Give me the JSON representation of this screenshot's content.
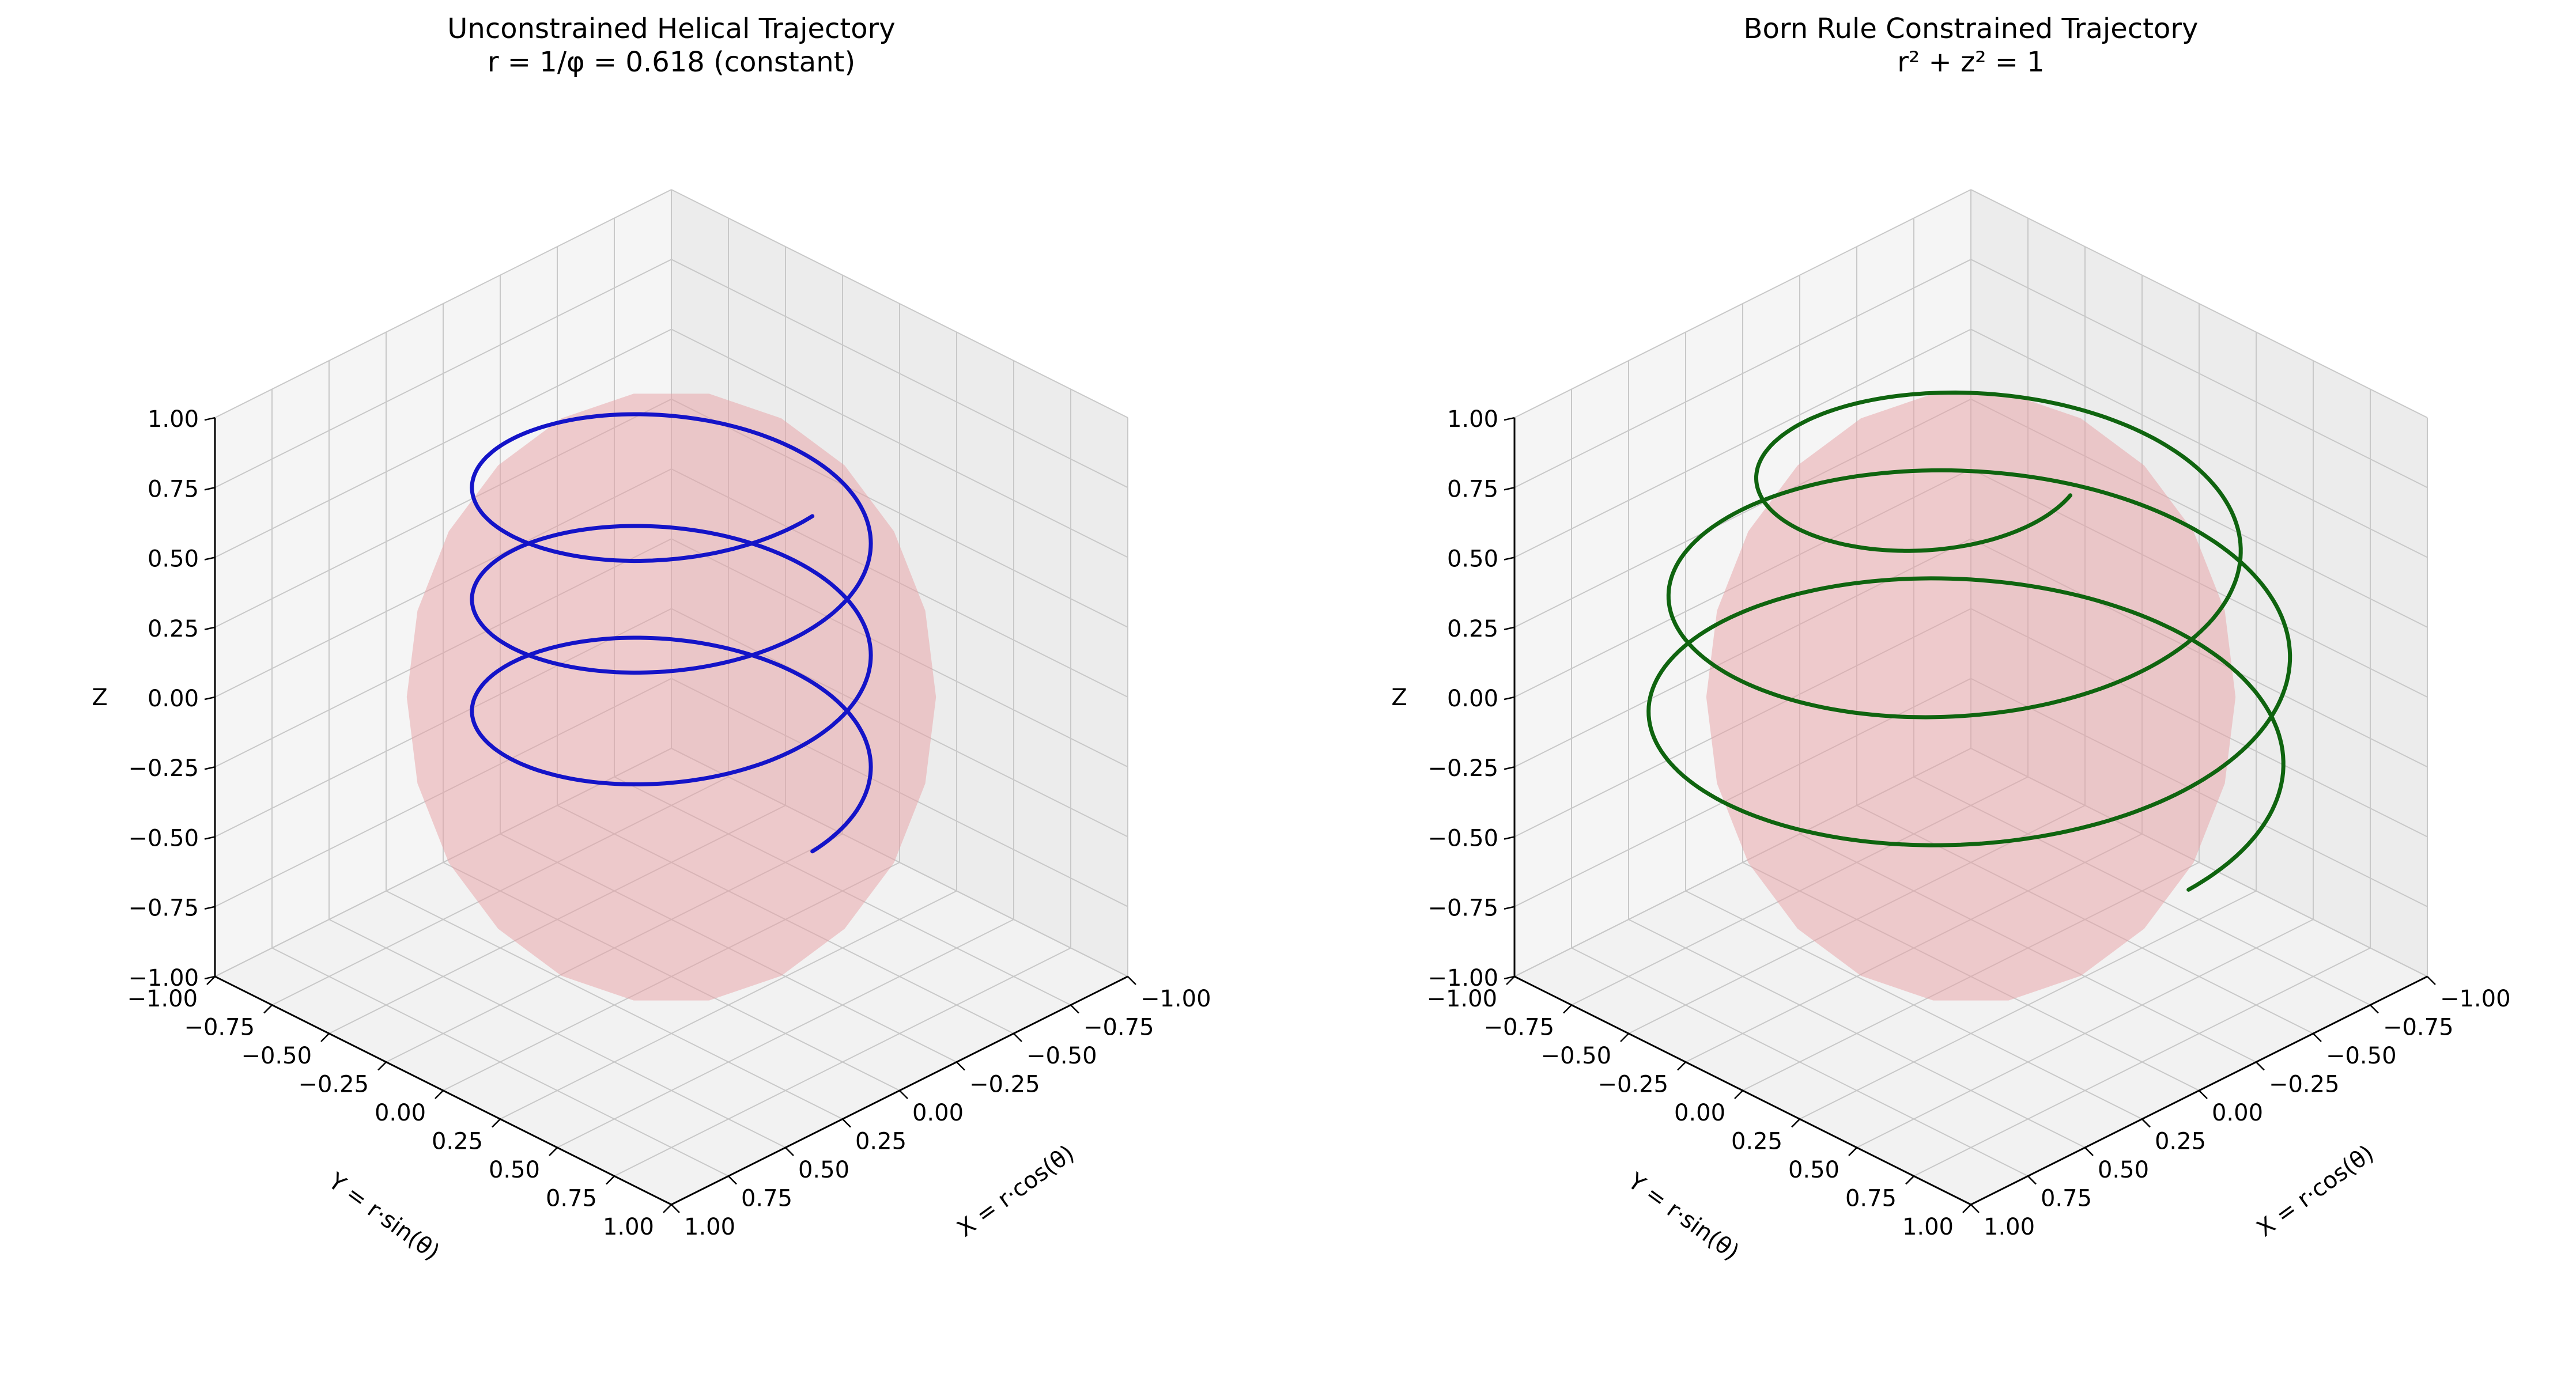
{
  "chart_data": [
    {
      "type": "line3d",
      "title": "Unconstrained Helical Trajectory",
      "subtitle": "r = 1/φ = 0.618 (constant)",
      "xlabel": "X = r·cos(θ)",
      "ylabel": "Y = r·sin(θ)",
      "zlabel": "Z",
      "xlim": [
        -1,
        1
      ],
      "ylim": [
        -1,
        1
      ],
      "zlim": [
        -1,
        1
      ],
      "xticks": [
        "−1.00",
        "−0.75",
        "−0.50",
        "−0.25",
        "0.00",
        "0.25",
        "0.50",
        "0.75",
        "1.00"
      ],
      "yticks": [
        "−1.00",
        "−0.75",
        "−0.50",
        "−0.25",
        "0.00",
        "0.25",
        "0.50",
        "0.75",
        "1.00"
      ],
      "zticks": [
        "−1.00",
        "−0.75",
        "−0.50",
        "−0.25",
        "0.00",
        "0.25",
        "0.50",
        "0.75",
        "1.00"
      ],
      "grid": true,
      "view": {
        "elev": 30,
        "azim": 45
      },
      "sphere": {
        "radius": 1,
        "color": "#e8a0a4",
        "opacity": 0.5
      },
      "series": [
        {
          "color": "#1414c8",
          "trajectory": {
            "kind": "helix",
            "radius": 0.618,
            "z_start": -0.3,
            "z_end": 0.9,
            "turns": 3,
            "theta_start_deg": 90
          }
        }
      ]
    },
    {
      "type": "line3d",
      "title": "Born Rule Constrained Trajectory",
      "subtitle": "r² + z² = 1",
      "xlabel": "X = r·cos(θ)",
      "ylabel": "Y = r·sin(θ)",
      "zlabel": "Z",
      "xlim": [
        -1,
        1
      ],
      "ylim": [
        -1,
        1
      ],
      "zlim": [
        -1,
        1
      ],
      "xticks": [
        "−1.00",
        "−0.75",
        "−0.50",
        "−0.25",
        "0.00",
        "0.25",
        "0.50",
        "0.75",
        "1.00"
      ],
      "yticks": [
        "−1.00",
        "−0.75",
        "−0.50",
        "−0.25",
        "0.00",
        "0.25",
        "0.50",
        "0.75",
        "1.00"
      ],
      "zticks": [
        "−1.00",
        "−0.75",
        "−0.50",
        "−0.25",
        "0.00",
        "0.25",
        "0.50",
        "0.75",
        "1.00"
      ],
      "grid": true,
      "view": {
        "elev": 30,
        "azim": 45
      },
      "sphere": {
        "radius": 1,
        "color": "#e8a0a4",
        "opacity": 0.5
      },
      "series": [
        {
          "color": "#0f640f",
          "trajectory": {
            "kind": "spherical-spiral",
            "z_start": -0.3,
            "z_end": 0.9,
            "turns": 3,
            "theta_start_deg": 90
          }
        }
      ]
    }
  ]
}
